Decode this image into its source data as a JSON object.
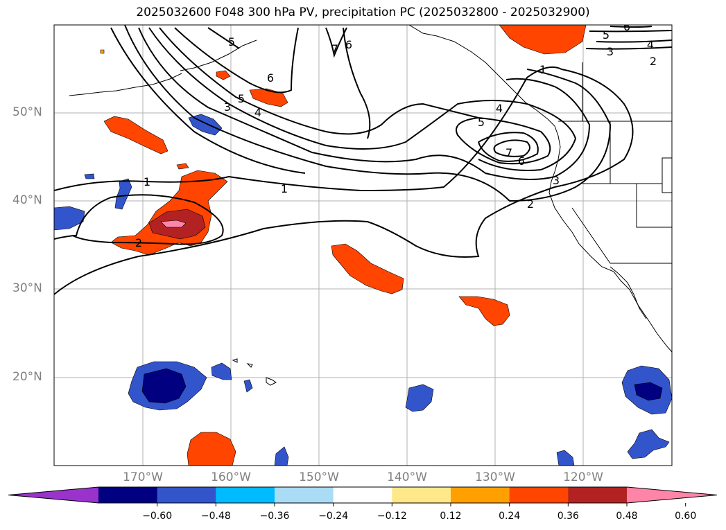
{
  "title": "2025032600 F048 300 hPa PV, precipitation PC (2025032800 - 2025032900)",
  "lat_labels": [
    "50°N",
    "40°N",
    "30°N",
    "20°N"
  ],
  "lon_labels": [
    "170°W",
    "160°W",
    "150°W",
    "140°W",
    "130°W",
    "120°W"
  ],
  "pv_contour_labels": [
    "1",
    "1",
    "1",
    "2",
    "2",
    "2",
    "3",
    "3",
    "3",
    "4",
    "4",
    "4",
    "5",
    "5",
    "5",
    "5",
    "6",
    "6",
    "6",
    "6",
    "7",
    "7"
  ],
  "colorbar": {
    "ticks": [
      "−0.60",
      "−0.48",
      "−0.36",
      "−0.24",
      "−0.12",
      "0.12",
      "0.24",
      "0.36",
      "0.48",
      "0.60"
    ],
    "colors": [
      "#9933cc",
      "#000080",
      "#3355cc",
      "#00bbff",
      "#aaddf5",
      "#ffffff",
      "#ffe88a",
      "#ffa000",
      "#ff4500",
      "#b22222",
      "#ff85a8"
    ]
  },
  "colors": {
    "contour": "#000000",
    "grid": "#b0b0b0",
    "coastline": "#000000",
    "label_gray": "#808080"
  }
}
